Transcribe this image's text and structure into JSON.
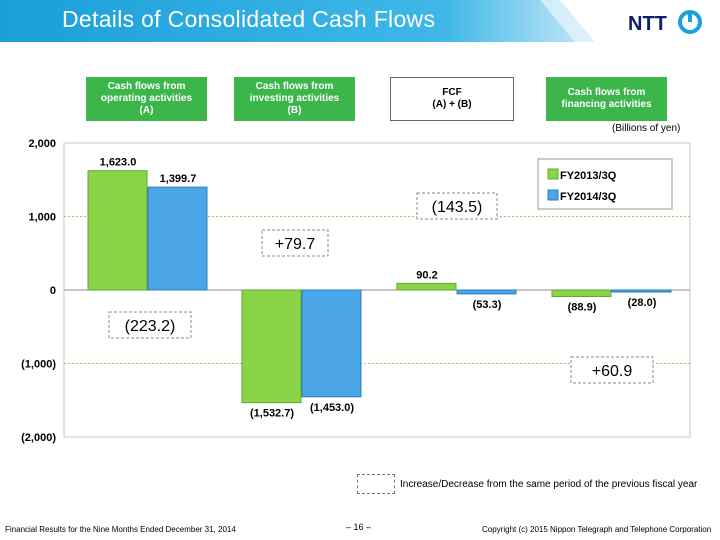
{
  "page": {
    "title": "Details of Consolidated Cash Flows",
    "logo_text": "NTT",
    "unit": "(Billions of yen)",
    "footer_left": "Financial Results for the Nine Months Ended December 31, 2014",
    "footer_page": "– 16 –",
    "footer_right": "Copyright (c) 2015 Nippon Telegraph and Telephone Corporation",
    "note": "Increase/Decrease from the same period of the previous fiscal year",
    "colors": {
      "banner": "#1fa6de",
      "series_2013": "#8ad44a",
      "series_2014": "#4aa6e6",
      "header_green": "#3cb54a"
    }
  },
  "headers": [
    {
      "line1": "Cash flows from",
      "line2": "operating activities",
      "line3": "(A)",
      "style": "green"
    },
    {
      "line1": "Cash flows from",
      "line2": "investing activities",
      "line3": "(B)",
      "style": "green"
    },
    {
      "line1": "FCF",
      "line2": "(A) + (B)",
      "line3": "",
      "style": "white"
    },
    {
      "line1": "Cash flows from",
      "line2": "financing activities",
      "line3": "",
      "style": "green"
    }
  ],
  "chart_data": {
    "type": "bar",
    "categories": [
      "Cash flows from operating activities (A)",
      "Cash flows from investing activities (B)",
      "FCF (A) + (B)",
      "Cash flows from financing activities"
    ],
    "series": [
      {
        "name": "FY2013/3Q",
        "values": [
          1623.0,
          -1532.7,
          90.2,
          -88.9
        ],
        "labels": [
          "1,623.0",
          "(1,532.7)",
          "90.2",
          "(88.9)"
        ]
      },
      {
        "name": "FY2014/3Q",
        "values": [
          1399.7,
          -1453.0,
          -53.3,
          -28.0
        ],
        "labels": [
          "1,399.7",
          "(1,453.0)",
          "(53.3)",
          "(28.0)"
        ]
      }
    ],
    "changes": [
      "(223.2)",
      "+79.7",
      "(143.5)",
      "+60.9"
    ],
    "ylim": [
      -2000,
      2000
    ],
    "yticks": [
      2000,
      1000,
      0,
      -1000,
      -2000
    ],
    "ytick_labels": [
      "2,000",
      "1,000",
      "0",
      "(1,000)",
      "(2,000)"
    ],
    "grid": true,
    "legend_position": "top-right"
  }
}
